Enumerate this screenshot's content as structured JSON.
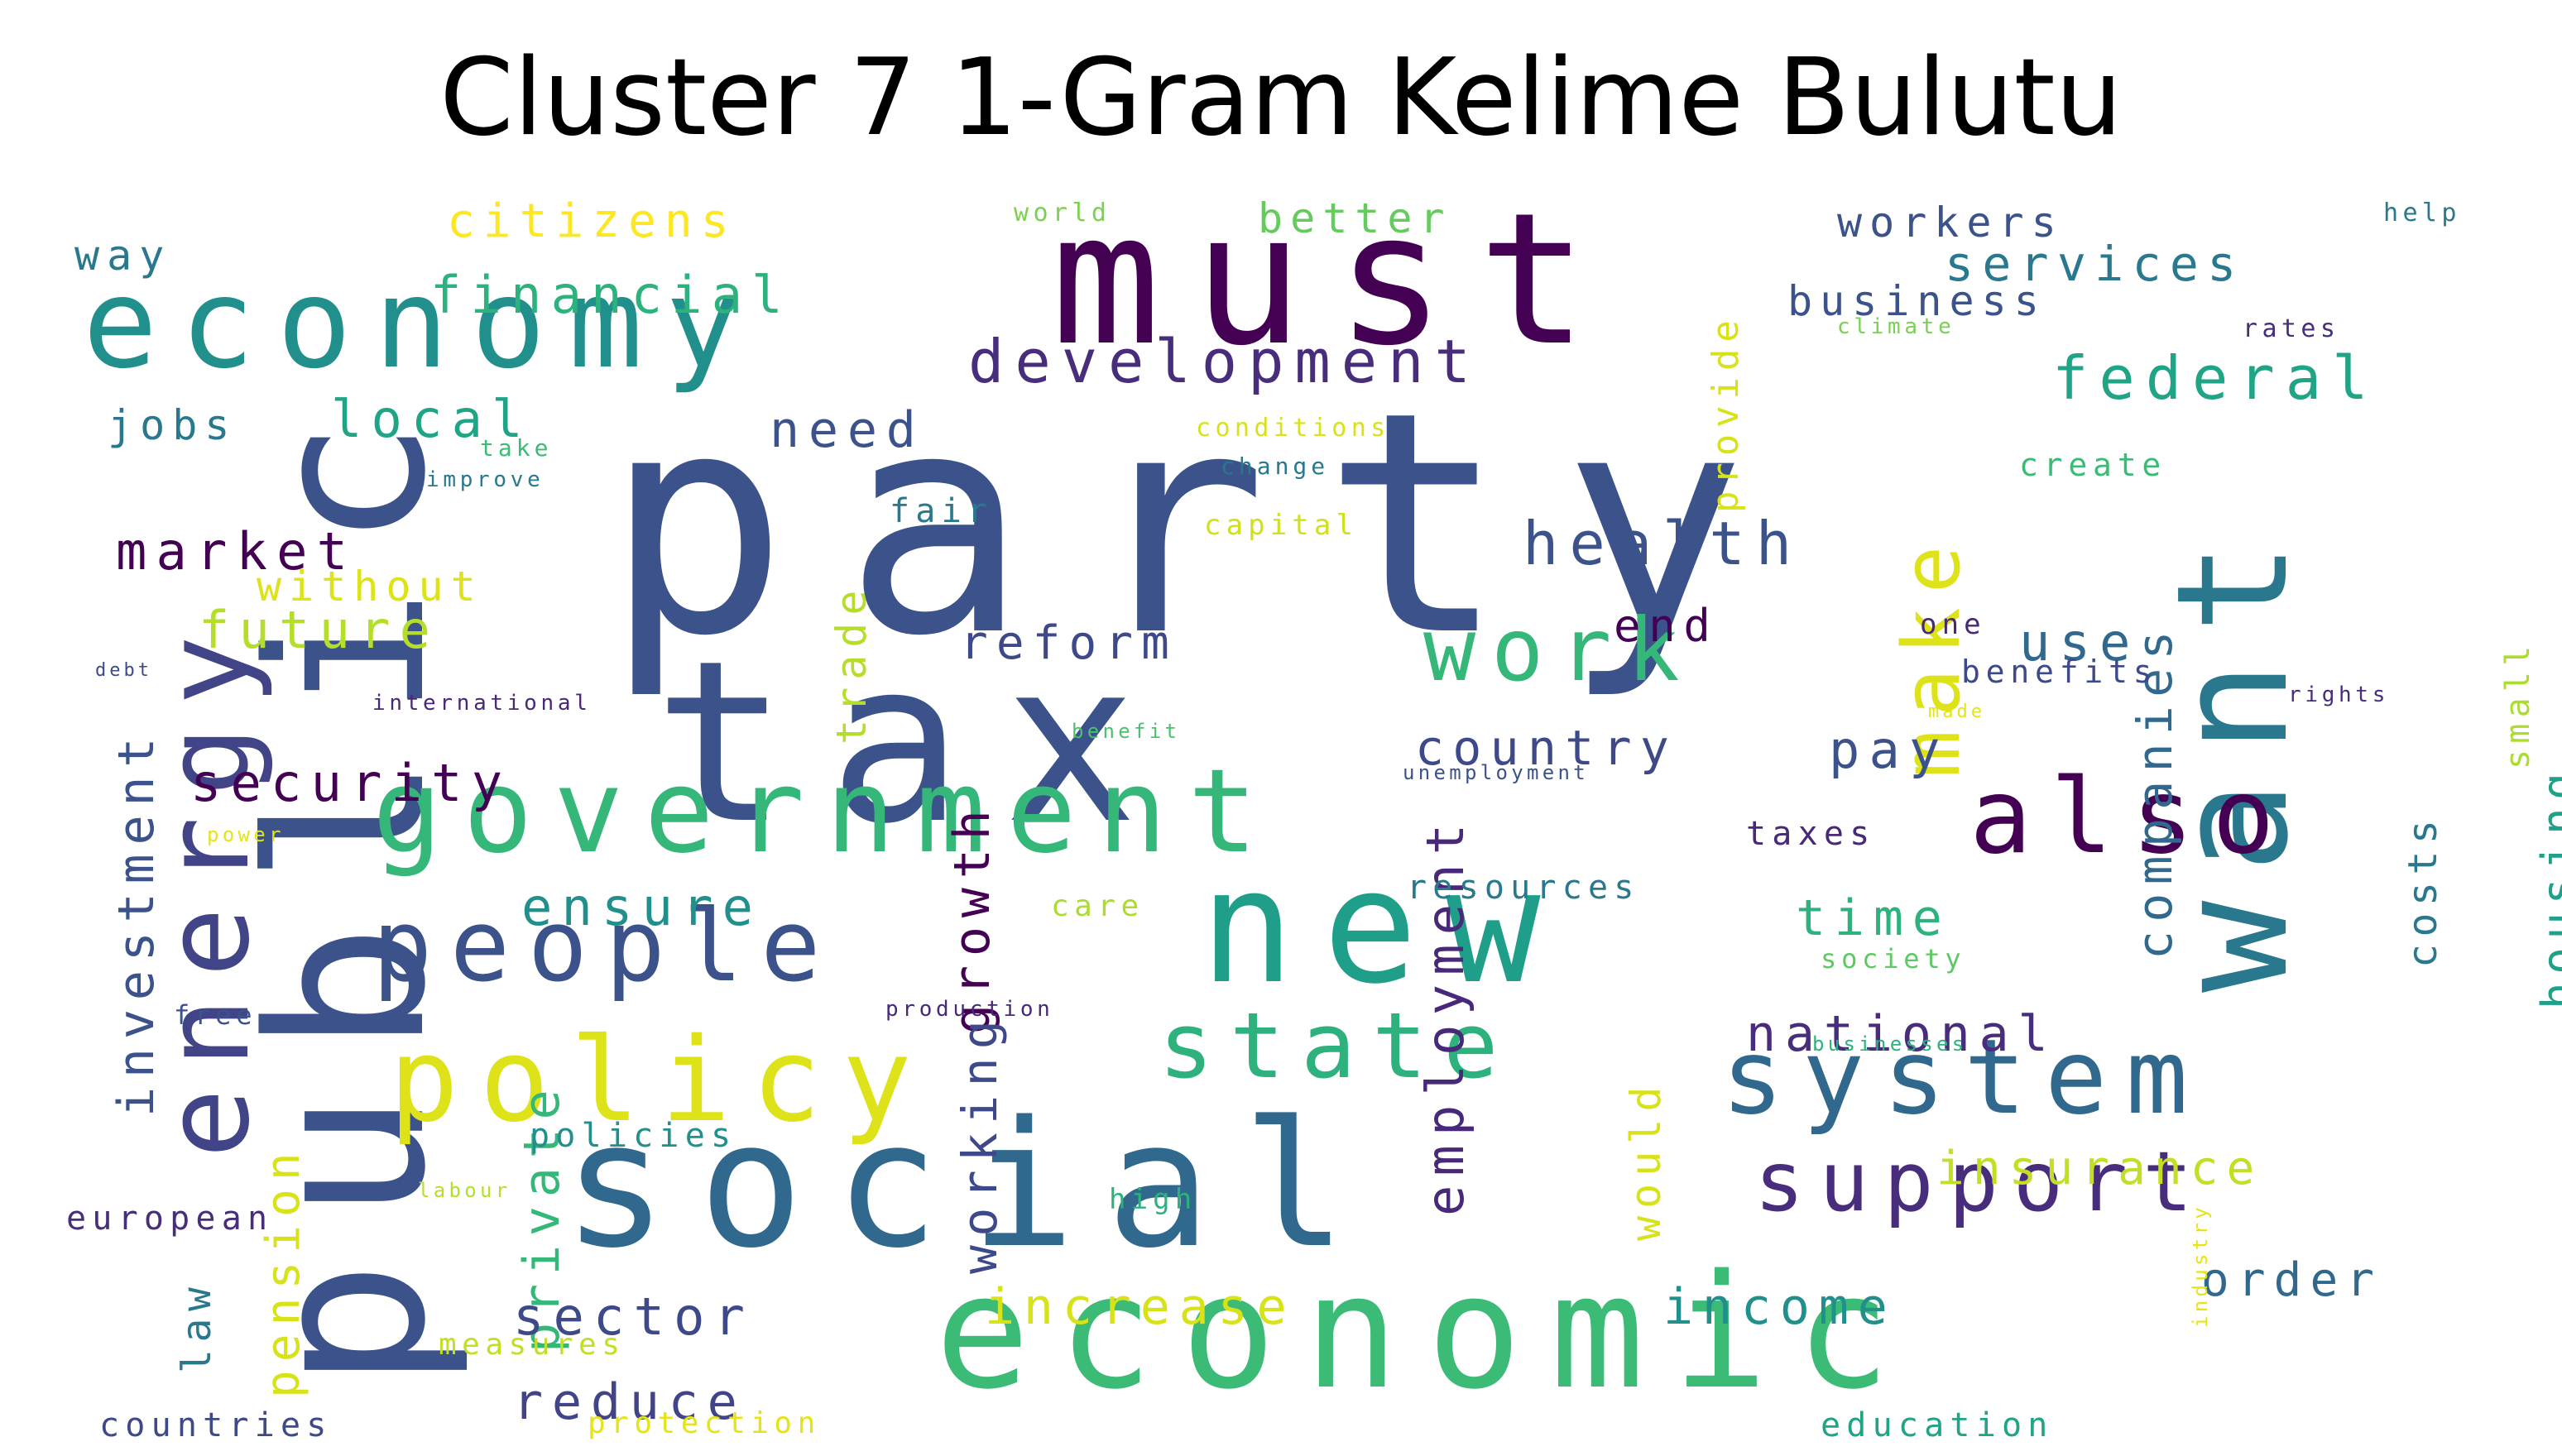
{
  "title": "Cluster 7 1-Gram Kelime Bulutu",
  "palette": {
    "background": "#ffffff",
    "title_color": "#000000",
    "colormap": "viridis"
  },
  "words": [
    {
      "text": "party",
      "color": "#3b528b"
    },
    {
      "text": "tax",
      "color": "#3b528b"
    },
    {
      "text": "public",
      "color": "#3b528b"
    },
    {
      "text": "must",
      "color": "#440154"
    },
    {
      "text": "economic",
      "color": "#3bbb75"
    },
    {
      "text": "social",
      "color": "#31688e"
    },
    {
      "text": "new",
      "color": "#1f9e89"
    },
    {
      "text": "energy",
      "color": "#414487"
    },
    {
      "text": "want",
      "color": "#2a788e"
    },
    {
      "text": "economy",
      "color": "#21908d"
    },
    {
      "text": "government",
      "color": "#35b779"
    },
    {
      "text": "policy",
      "color": "#dde318"
    },
    {
      "text": "system",
      "color": "#31688e"
    },
    {
      "text": "people",
      "color": "#3b528b"
    },
    {
      "text": "also",
      "color": "#440154"
    },
    {
      "text": "support",
      "color": "#472d7b"
    },
    {
      "text": "state",
      "color": "#2db27d"
    },
    {
      "text": "work",
      "color": "#35b779"
    },
    {
      "text": "make",
      "color": "#dde318"
    },
    {
      "text": "development",
      "color": "#472d7b"
    },
    {
      "text": "federal",
      "color": "#20a486"
    },
    {
      "text": "health",
      "color": "#3b528b"
    },
    {
      "text": "investment",
      "color": "#3b528b"
    },
    {
      "text": "employment",
      "color": "#482878"
    },
    {
      "text": "companies",
      "color": "#31688e"
    },
    {
      "text": "growth",
      "color": "#440154"
    },
    {
      "text": "financial",
      "color": "#2db27d"
    },
    {
      "text": "local",
      "color": "#20a486"
    },
    {
      "text": "market",
      "color": "#440154"
    },
    {
      "text": "future",
      "color": "#b5de2b"
    },
    {
      "text": "security",
      "color": "#440154"
    },
    {
      "text": "ensure",
      "color": "#21908d"
    },
    {
      "text": "pension",
      "color": "#d8e219"
    },
    {
      "text": "private",
      "color": "#35b779"
    },
    {
      "text": "working",
      "color": "#3e4989"
    },
    {
      "text": "sector",
      "color": "#3e4989"
    },
    {
      "text": "reduce",
      "color": "#414487"
    },
    {
      "text": "increase",
      "color": "#d8e219"
    },
    {
      "text": "income",
      "color": "#21908d"
    },
    {
      "text": "national",
      "color": "#472d7b"
    },
    {
      "text": "insurance",
      "color": "#c2df23"
    },
    {
      "text": "order",
      "color": "#31688e"
    },
    {
      "text": "time",
      "color": "#2db27d"
    },
    {
      "text": "pay",
      "color": "#3b528b"
    },
    {
      "text": "country",
      "color": "#3e4989"
    },
    {
      "text": "reform",
      "color": "#3e4989"
    },
    {
      "text": "need",
      "color": "#3b528b"
    },
    {
      "text": "housing",
      "color": "#1fa088"
    },
    {
      "text": "costs",
      "color": "#2a788e"
    },
    {
      "text": "use",
      "color": "#31688e"
    },
    {
      "text": "end",
      "color": "#440154"
    },
    {
      "text": "services",
      "color": "#2a788e"
    },
    {
      "text": "workers",
      "color": "#3b528b"
    },
    {
      "text": "business",
      "color": "#3b528b"
    },
    {
      "text": "citizens",
      "color": "#fde725"
    },
    {
      "text": "better",
      "color": "#65cb5e"
    },
    {
      "text": "jobs",
      "color": "#2a788e"
    },
    {
      "text": "way",
      "color": "#2a788e"
    },
    {
      "text": "without",
      "color": "#dde318"
    },
    {
      "text": "trade",
      "color": "#b5de2b"
    },
    {
      "text": "would",
      "color": "#d8e219"
    },
    {
      "text": "provide",
      "color": "#d8e219"
    },
    {
      "text": "create",
      "color": "#3bbb75"
    },
    {
      "text": "taxes",
      "color": "#482878"
    },
    {
      "text": "law",
      "color": "#2a788e"
    },
    {
      "text": "european",
      "color": "#472d7b"
    },
    {
      "text": "policies",
      "color": "#21908d"
    },
    {
      "text": "resources",
      "color": "#2a788e"
    },
    {
      "text": "benefits",
      "color": "#3e4989"
    },
    {
      "text": "education",
      "color": "#20a486"
    },
    {
      "text": "countries",
      "color": "#3e4989"
    },
    {
      "text": "measures",
      "color": "#c2df23"
    },
    {
      "text": "protection",
      "color": "#e5e419"
    },
    {
      "text": "care",
      "color": "#addc30"
    },
    {
      "text": "free",
      "color": "#3b528b"
    },
    {
      "text": "fair",
      "color": "#2a788e"
    },
    {
      "text": "small",
      "color": "#addc30"
    },
    {
      "text": "one",
      "color": "#482878"
    },
    {
      "text": "society",
      "color": "#5ec962"
    },
    {
      "text": "high",
      "color": "#2db27d"
    },
    {
      "text": "capital",
      "color": "#d0e11c"
    },
    {
      "text": "take",
      "color": "#3bbb75"
    },
    {
      "text": "improve",
      "color": "#2a788e"
    },
    {
      "text": "change",
      "color": "#2a788e"
    },
    {
      "text": "conditions",
      "color": "#d8e219"
    },
    {
      "text": "world",
      "color": "#7ad151"
    },
    {
      "text": "help",
      "color": "#2a788e"
    },
    {
      "text": "rates",
      "color": "#472d7b"
    },
    {
      "text": "climate",
      "color": "#7ad151"
    },
    {
      "text": "rights",
      "color": "#472d7b"
    },
    {
      "text": "made",
      "color": "#e5e419"
    },
    {
      "text": "debt",
      "color": "#3e4989"
    },
    {
      "text": "international",
      "color": "#482878"
    },
    {
      "text": "benefit",
      "color": "#4ac16d"
    },
    {
      "text": "unemployment",
      "color": "#3b528b"
    },
    {
      "text": "power",
      "color": "#e5e419"
    },
    {
      "text": "production",
      "color": "#482878"
    },
    {
      "text": "businesses",
      "color": "#2db27d"
    },
    {
      "text": "labour",
      "color": "#b5de2b"
    },
    {
      "text": "industry",
      "color": "#e5e419"
    }
  ]
}
